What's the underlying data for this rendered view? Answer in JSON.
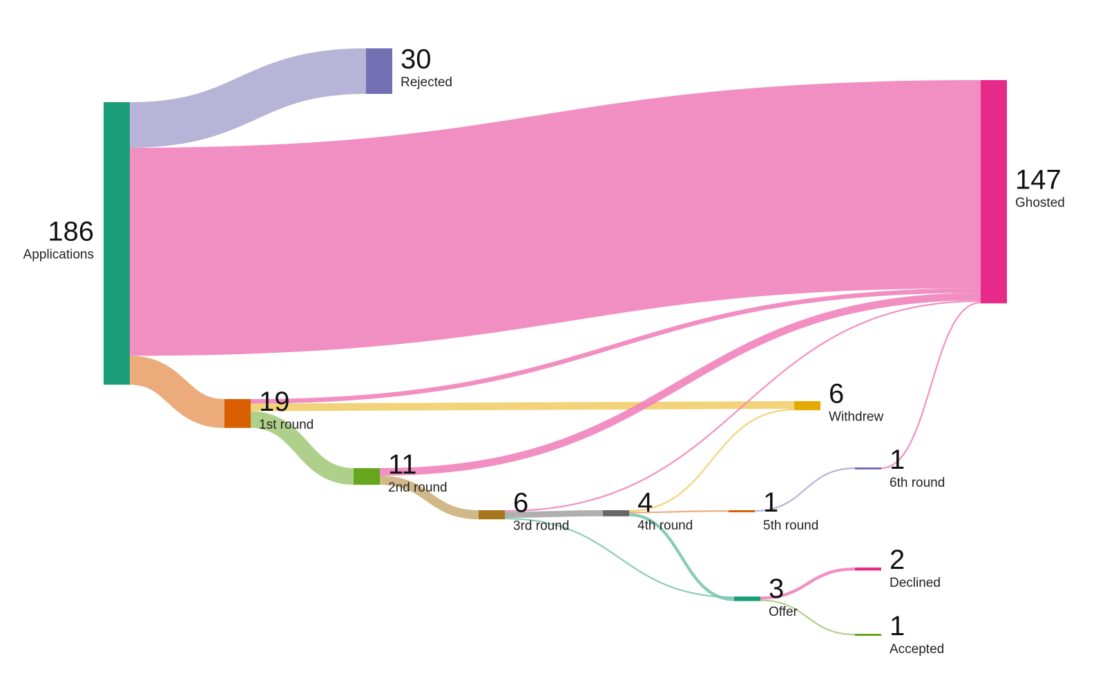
{
  "chart_data": {
    "type": "sankey",
    "nodes": [
      {
        "id": "applications",
        "label": "Applications",
        "value": 186,
        "color": "#1b9e77"
      },
      {
        "id": "rejected",
        "label": "Rejected",
        "value": 30,
        "color": "#7570b3"
      },
      {
        "id": "ghosted",
        "label": "Ghosted",
        "value": 147,
        "color": "#e7298a"
      },
      {
        "id": "round1",
        "label": "1st round",
        "value": 19,
        "color": "#d95f02"
      },
      {
        "id": "withdrew",
        "label": "Withdrew",
        "value": 6,
        "color": "#e6ab02"
      },
      {
        "id": "round2",
        "label": "2nd round",
        "value": 11,
        "color": "#66a61e"
      },
      {
        "id": "round3",
        "label": "3rd round",
        "value": 6,
        "color": "#a6761d"
      },
      {
        "id": "round4",
        "label": "4th round",
        "value": 4,
        "color": "#666666"
      },
      {
        "id": "round5",
        "label": "5th round",
        "value": 1,
        "color": "#d95f02"
      },
      {
        "id": "round6",
        "label": "6th round",
        "value": 1,
        "color": "#7570b3"
      },
      {
        "id": "offer",
        "label": "Offer",
        "value": 3,
        "color": "#1b9e77"
      },
      {
        "id": "declined",
        "label": "Declined",
        "value": 2,
        "color": "#e7298a"
      },
      {
        "id": "accepted",
        "label": "Accepted",
        "value": 1,
        "color": "#66a61e"
      }
    ],
    "links": [
      {
        "source": "applications",
        "target": "rejected",
        "value": 30
      },
      {
        "source": "applications",
        "target": "ghosted",
        "value": 137
      },
      {
        "source": "applications",
        "target": "round1",
        "value": 19
      },
      {
        "source": "round1",
        "target": "ghosted",
        "value": 3
      },
      {
        "source": "round1",
        "target": "withdrew",
        "value": 5
      },
      {
        "source": "round1",
        "target": "round2",
        "value": 11
      },
      {
        "source": "round2",
        "target": "ghosted",
        "value": 5
      },
      {
        "source": "round2",
        "target": "round3",
        "value": 6
      },
      {
        "source": "round3",
        "target": "ghosted",
        "value": 1
      },
      {
        "source": "round3",
        "target": "round4",
        "value": 4
      },
      {
        "source": "round3",
        "target": "offer",
        "value": 1
      },
      {
        "source": "round4",
        "target": "withdrew",
        "value": 1
      },
      {
        "source": "round4",
        "target": "round5",
        "value": 1
      },
      {
        "source": "round4",
        "target": "offer",
        "value": 2
      },
      {
        "source": "round5",
        "target": "round6",
        "value": 1
      },
      {
        "source": "round6",
        "target": "ghosted",
        "value": 1
      },
      {
        "source": "offer",
        "target": "declined",
        "value": 2
      },
      {
        "source": "offer",
        "target": "accepted",
        "value": 1
      }
    ]
  }
}
